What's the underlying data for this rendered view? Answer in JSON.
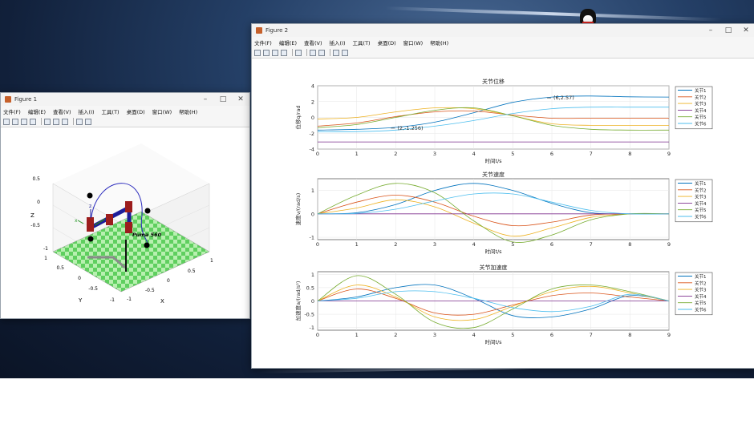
{
  "colors": {
    "j1": "#0072BD",
    "j2": "#D95319",
    "j3": "#EDB120",
    "j4": "#7E2F8E",
    "j5": "#77AC30",
    "j6": "#4DBEEE"
  },
  "figure1": {
    "title": "Figure 1",
    "menu": [
      "文件(F)",
      "编辑(E)",
      "查看(V)",
      "插入(I)",
      "工具(T)",
      "桌面(D)",
      "窗口(W)",
      "帮助(H)"
    ],
    "zlabel": "Z",
    "xlabel": "X",
    "ylabel": "Y",
    "zticks": [
      "0.5",
      "0",
      "-0.5",
      "-1"
    ],
    "yticks": [
      "1",
      "0.5",
      "0",
      "-0.5",
      "-1"
    ],
    "xticks": [
      "-1",
      "-0.5",
      "0",
      "0.5",
      "1"
    ],
    "robot_name": "Puma 560",
    "frame_labels": [
      "z",
      "x"
    ]
  },
  "figure2": {
    "title": "Figure 2",
    "menu": [
      "文件(F)",
      "编辑(E)",
      "查看(V)",
      "插入(I)",
      "工具(T)",
      "桌面(D)",
      "窗口(W)",
      "帮助(H)"
    ]
  },
  "chart_data": [
    {
      "type": "line",
      "title": "关节位移",
      "xlabel": "时间t/s",
      "ylabel": "位移q/rad",
      "xlim": [
        0,
        9
      ],
      "ylim": [
        -4,
        4
      ],
      "xticks": [
        0,
        1,
        2,
        3,
        4,
        5,
        6,
        7,
        8,
        9
      ],
      "yticks": [
        4,
        2,
        0,
        -2,
        -4
      ],
      "legend": "right",
      "annotations": [
        {
          "text": "(6,2.57)",
          "x": 6,
          "y": 2.57
        },
        {
          "text": "(2,-1.256)",
          "x": 2,
          "y": -1.256
        }
      ],
      "x": [
        0,
        1,
        2,
        3,
        4,
        5,
        6,
        7,
        8,
        9
      ],
      "series": [
        {
          "name": "关节1",
          "color": "j1",
          "values": [
            -1.6,
            -1.5,
            -1.256,
            -0.6,
            0.6,
            1.9,
            2.57,
            2.7,
            2.6,
            2.57
          ]
        },
        {
          "name": "关节2",
          "color": "j2",
          "values": [
            -1.1,
            -0.7,
            0.1,
            0.7,
            0.8,
            0.3,
            -0.1,
            -0.1,
            -0.1,
            -0.1
          ]
        },
        {
          "name": "关节3",
          "color": "j3",
          "values": [
            -0.2,
            0.0,
            0.7,
            1.2,
            1.1,
            0.2,
            -0.8,
            -1.0,
            -1.0,
            -1.0
          ]
        },
        {
          "name": "关节4",
          "color": "j4",
          "values": [
            -3.1,
            -3.1,
            -3.1,
            -3.1,
            -3.1,
            -3.1,
            -3.1,
            -3.1,
            -3.1,
            -3.1
          ]
        },
        {
          "name": "关节5",
          "color": "j5",
          "values": [
            -1.3,
            -0.9,
            0.0,
            0.9,
            1.2,
            0.2,
            -1.0,
            -1.5,
            -1.6,
            -1.6
          ]
        },
        {
          "name": "关节6",
          "color": "j6",
          "values": [
            -1.8,
            -1.8,
            -1.6,
            -1.1,
            -0.4,
            0.5,
            1.1,
            1.3,
            1.3,
            1.3
          ]
        }
      ]
    },
    {
      "type": "line",
      "title": "关节速度",
      "xlabel": "时间t/s",
      "ylabel": "速度v/(rad/s)",
      "xlim": [
        0,
        9
      ],
      "ylim": [
        -1.1,
        1.5
      ],
      "xticks": [
        0,
        1,
        2,
        3,
        4,
        5,
        6,
        7,
        8,
        9
      ],
      "yticks": [
        1,
        0,
        -1
      ],
      "legend": "right",
      "x": [
        0,
        1,
        2,
        3,
        4,
        5,
        6,
        7,
        8,
        9
      ],
      "series": [
        {
          "name": "关节1",
          "color": "j1",
          "values": [
            0,
            0.05,
            0.4,
            1.0,
            1.3,
            1.0,
            0.45,
            0.05,
            0,
            0
          ]
        },
        {
          "name": "关节2",
          "color": "j2",
          "values": [
            0,
            0.5,
            0.8,
            0.5,
            -0.1,
            -0.5,
            -0.35,
            -0.05,
            0,
            0
          ]
        },
        {
          "name": "关节3",
          "color": "j3",
          "values": [
            0,
            0.25,
            0.6,
            0.3,
            -0.4,
            -0.95,
            -0.6,
            -0.15,
            0,
            0
          ]
        },
        {
          "name": "关节4",
          "color": "j4",
          "values": [
            0,
            0,
            0,
            0,
            0,
            0,
            0,
            0,
            0,
            0
          ]
        },
        {
          "name": "关节5",
          "color": "j5",
          "values": [
            0,
            0.8,
            1.3,
            0.9,
            -0.3,
            -1.2,
            -0.9,
            -0.25,
            0,
            0
          ]
        },
        {
          "name": "关节6",
          "color": "j6",
          "values": [
            0,
            0.02,
            0.2,
            0.55,
            0.85,
            0.85,
            0.5,
            0.15,
            0,
            0
          ]
        }
      ]
    },
    {
      "type": "line",
      "title": "关节加速度",
      "xlabel": "时间t/s",
      "ylabel": "加速度a/(rad/s²)",
      "xlim": [
        0,
        9
      ],
      "ylim": [
        -1.1,
        1.1
      ],
      "xticks": [
        0,
        1,
        2,
        3,
        4,
        5,
        6,
        7,
        8,
        9
      ],
      "yticks": [
        1,
        0.5,
        0,
        -0.5,
        -1
      ],
      "legend": "right",
      "x": [
        0,
        1,
        2,
        3,
        4,
        5,
        6,
        7,
        8,
        9
      ],
      "series": [
        {
          "name": "关节1",
          "color": "j1",
          "values": [
            0,
            0.15,
            0.5,
            0.6,
            0.1,
            -0.55,
            -0.6,
            -0.3,
            0.2,
            0
          ]
        },
        {
          "name": "关节2",
          "color": "j2",
          "values": [
            0,
            0.45,
            0.1,
            -0.45,
            -0.5,
            -0.15,
            0.2,
            0.3,
            0.15,
            0
          ]
        },
        {
          "name": "关节3",
          "color": "j3",
          "values": [
            0,
            0.6,
            0.15,
            -0.6,
            -0.7,
            -0.2,
            0.35,
            0.55,
            0.3,
            0
          ]
        },
        {
          "name": "关节4",
          "color": "j4",
          "values": [
            0,
            0,
            0,
            0,
            0,
            0,
            0,
            0,
            0,
            0
          ]
        },
        {
          "name": "关节5",
          "color": "j5",
          "values": [
            0,
            0.95,
            0.25,
            -0.8,
            -1.0,
            -0.3,
            0.45,
            0.6,
            0.35,
            0
          ]
        },
        {
          "name": "关节6",
          "color": "j6",
          "values": [
            0,
            0.1,
            0.35,
            0.35,
            0.1,
            -0.25,
            -0.4,
            -0.2,
            0.25,
            0
          ]
        }
      ]
    }
  ]
}
